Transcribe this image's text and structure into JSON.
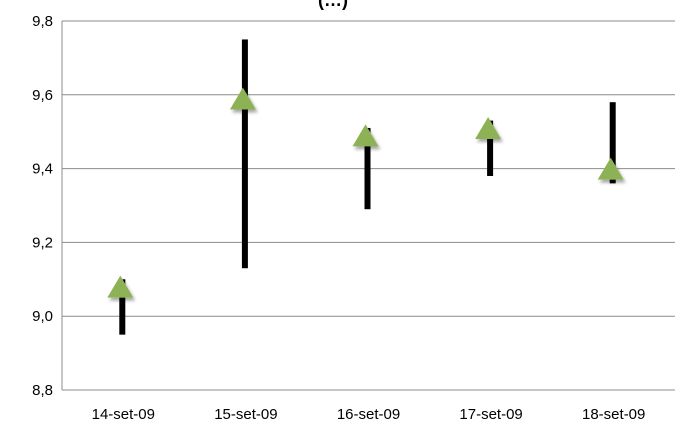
{
  "chart_data": {
    "type": "scatter",
    "title_fragment": "(…)",
    "categories": [
      "14-set-09",
      "15-set-09",
      "16-set-09",
      "17-set-09",
      "18-set-09"
    ],
    "y_tick_labels": [
      "8,8",
      "9,0",
      "9,2",
      "9,4",
      "9,6",
      "9,8"
    ],
    "y_ticks": [
      8.8,
      9.0,
      9.2,
      9.4,
      9.6,
      9.8
    ],
    "ylim": [
      8.8,
      9.8
    ],
    "grid": true,
    "legend": "none",
    "series": [
      {
        "marker": "triangle",
        "color": "#8DB255",
        "values": [
          9.08,
          9.59,
          9.49,
          9.51,
          9.4
        ]
      },
      {
        "marker": "vertical-range",
        "color": "#000000",
        "low": [
          8.95,
          9.13,
          9.29,
          9.38,
          9.36
        ],
        "high": [
          9.1,
          9.75,
          9.51,
          9.53,
          9.58
        ]
      }
    ]
  }
}
